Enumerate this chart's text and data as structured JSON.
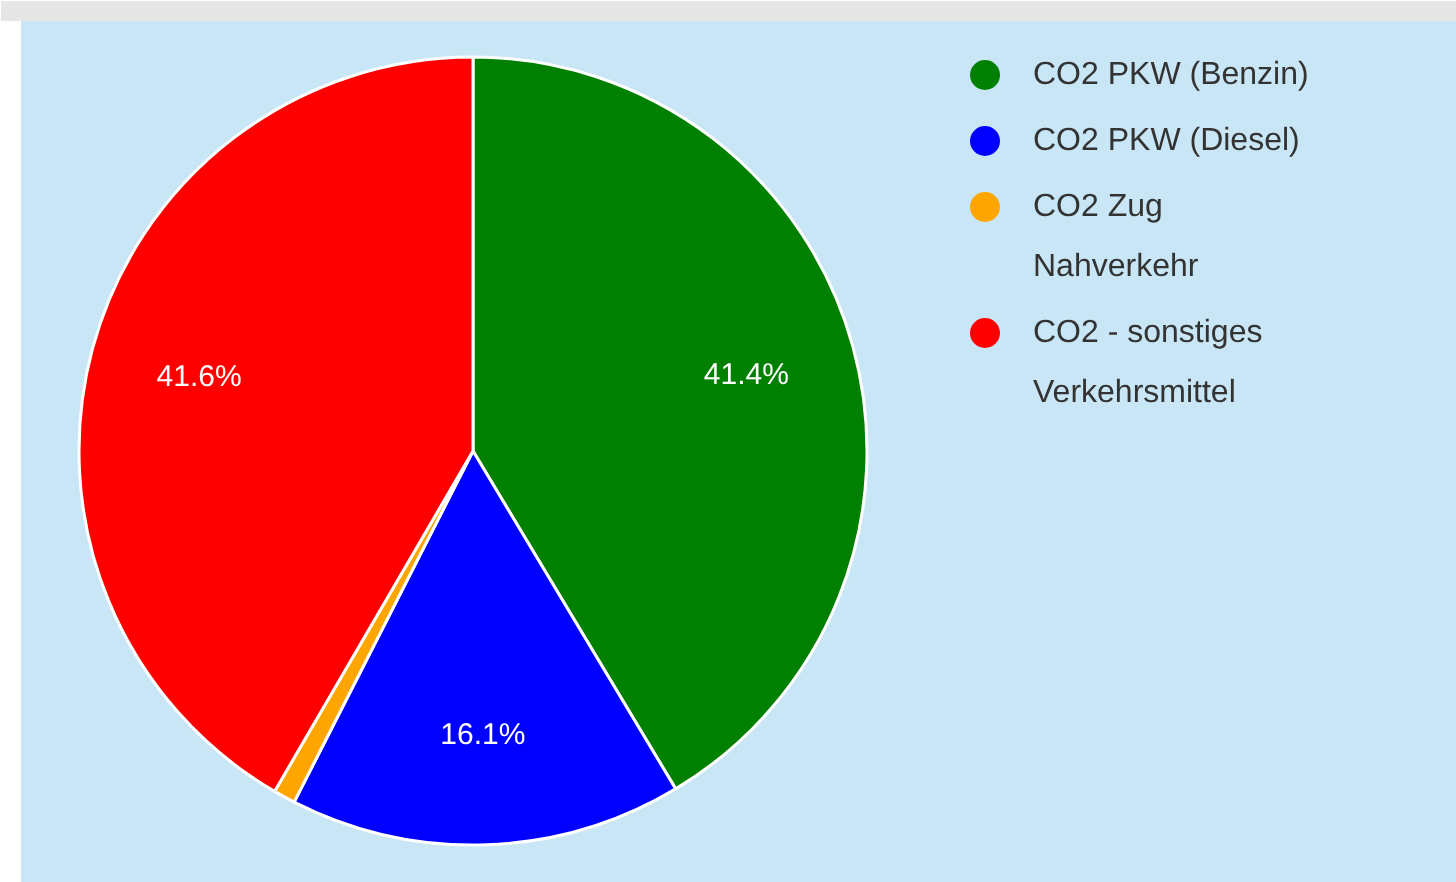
{
  "chart_data": {
    "type": "pie",
    "categories": [
      "CO2 PKW (Benzin)",
      "CO2 PKW (Diesel)",
      "CO2 Zug Nahverkehr",
      "CO2 - sonstiges Verkehrsmittel"
    ],
    "values": [
      41.4,
      16.1,
      0.9,
      41.6
    ],
    "value_labels": [
      "41.4%",
      "16.1%",
      null,
      "41.6%"
    ],
    "colors": [
      "#008000",
      "#0000ff",
      "#ffa500",
      "#ff0000"
    ],
    "legend": "top right"
  }
}
